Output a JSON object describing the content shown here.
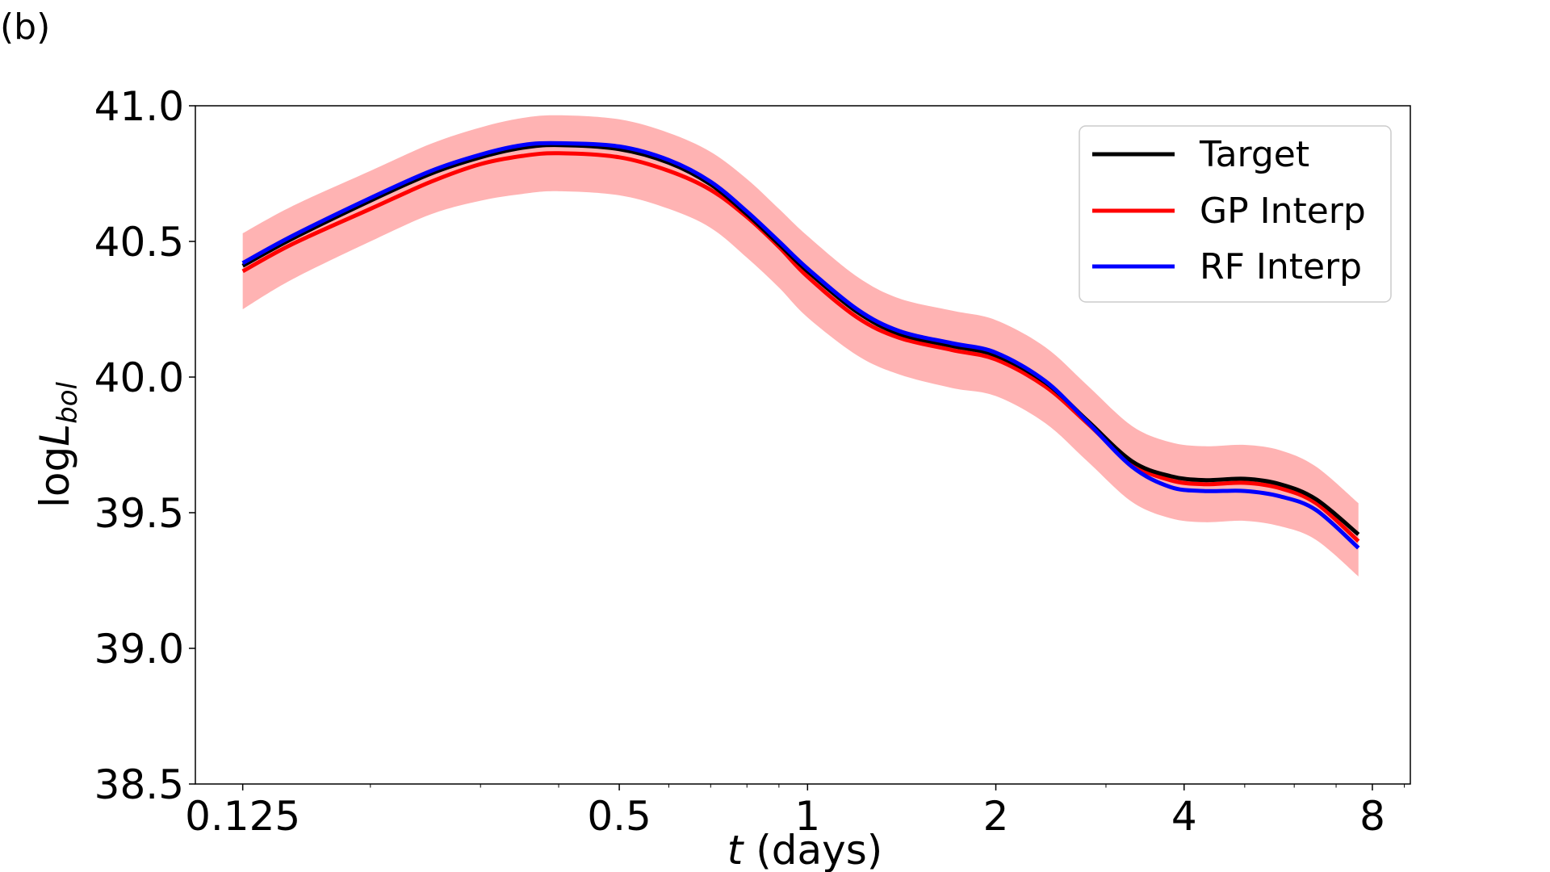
{
  "panel_label": "(b)",
  "chart_data": {
    "type": "line",
    "title": "",
    "xlabel_italic": "t",
    "xlabel_rest": " (days)",
    "ylabel_main": "log",
    "ylabel_var": "L",
    "ylabel_sub": "bol",
    "x_scale": "log2",
    "xlim": [
      0.105,
      9.2
    ],
    "ylim": [
      38.5,
      41.0
    ],
    "x_ticks": [
      {
        "value": 0.125,
        "label": "0.125"
      },
      {
        "value": 0.5,
        "label": "0.5"
      },
      {
        "value": 1,
        "label": "1"
      },
      {
        "value": 2,
        "label": "2"
      },
      {
        "value": 4,
        "label": "4"
      },
      {
        "value": 8,
        "label": "8"
      }
    ],
    "y_ticks": [
      {
        "value": 38.5,
        "label": "38.5"
      },
      {
        "value": 39.0,
        "label": "39.0"
      },
      {
        "value": 39.5,
        "label": "39.5"
      },
      {
        "value": 40.0,
        "label": "40.0"
      },
      {
        "value": 40.5,
        "label": "40.5"
      },
      {
        "value": 41.0,
        "label": "41.0"
      }
    ],
    "legend_position": "top-right",
    "x": [
      0.125,
      0.15,
      0.2,
      0.25,
      0.3,
      0.35,
      0.4,
      0.5,
      0.6,
      0.7,
      0.8,
      0.9,
      1.0,
      1.2,
      1.4,
      1.7,
      2.0,
      2.4,
      2.8,
      3.3,
      3.8,
      4.3,
      5.0,
      5.7,
      6.5,
      7.6
    ],
    "series": [
      {
        "name": "Target",
        "color": "#000000",
        "values": [
          40.41,
          40.51,
          40.65,
          40.75,
          40.81,
          40.845,
          40.855,
          40.84,
          40.79,
          40.71,
          40.6,
          40.49,
          40.39,
          40.24,
          40.16,
          40.115,
          40.08,
          39.98,
          39.84,
          39.69,
          39.635,
          39.62,
          39.625,
          39.605,
          39.55,
          39.42
        ]
      },
      {
        "name": "GP Interp",
        "color": "#ff0000",
        "values": [
          40.39,
          40.49,
          40.62,
          40.72,
          40.785,
          40.815,
          40.825,
          40.81,
          40.76,
          40.69,
          40.59,
          40.48,
          40.37,
          40.22,
          40.145,
          40.1,
          40.065,
          39.965,
          39.83,
          39.68,
          39.62,
          39.605,
          39.61,
          39.59,
          39.535,
          39.395
        ],
        "band_lower": [
          40.25,
          40.36,
          40.5,
          40.6,
          40.65,
          40.675,
          40.685,
          40.67,
          40.62,
          40.55,
          40.44,
          40.33,
          40.22,
          40.08,
          40.01,
          39.96,
          39.93,
          39.83,
          39.69,
          39.54,
          39.48,
          39.465,
          39.47,
          39.45,
          39.4,
          39.265
        ],
        "band_upper": [
          40.53,
          40.63,
          40.76,
          40.86,
          40.92,
          40.955,
          40.965,
          40.95,
          40.9,
          40.83,
          40.73,
          40.62,
          40.52,
          40.37,
          40.29,
          40.245,
          40.21,
          40.11,
          39.97,
          39.82,
          39.76,
          39.745,
          39.75,
          39.73,
          39.67,
          39.535
        ]
      },
      {
        "name": "RF Interp",
        "color": "#0000ff",
        "values": [
          40.42,
          40.52,
          40.66,
          40.76,
          40.82,
          40.855,
          40.862,
          40.85,
          40.8,
          40.72,
          40.61,
          40.5,
          40.4,
          40.25,
          40.17,
          40.125,
          40.09,
          39.985,
          39.835,
          39.67,
          39.595,
          39.58,
          39.58,
          39.56,
          39.51,
          39.37
        ]
      }
    ]
  }
}
